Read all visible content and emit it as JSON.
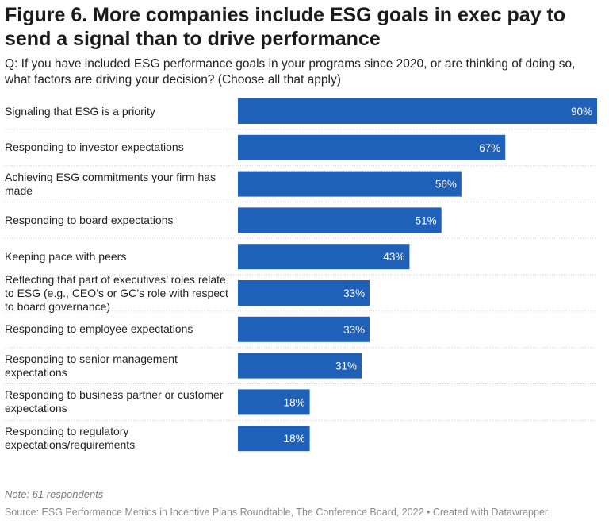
{
  "chart_data": {
    "type": "bar",
    "orientation": "horizontal",
    "title": "Figure 6. More companies include ESG goals in exec pay to send a signal than to drive performance",
    "subtitle": "Q: If you have included ESG performance goals in your programs since 2020, or are thinking of doing so, what factors are driving your decision? (Choose all that apply)",
    "categories": [
      "Signaling that ESG is a priority",
      "Responding to investor expectations",
      "Achieving ESG commitments your firm has made",
      "Responding to board expectations",
      "Keeping pace with peers",
      "Reflecting that part of executives’ roles relate to ESG (e.g., CEO’s or GC’s role with respect to board governance)",
      "Responding to employee expectations",
      "Responding to senior management expectations",
      "Responding to business partner or customer expectations",
      "Responding to regulatory expectations/requirements"
    ],
    "values": [
      90,
      67,
      56,
      51,
      43,
      33,
      33,
      31,
      18,
      18
    ],
    "value_labels": [
      "90%",
      "67%",
      "56%",
      "51%",
      "43%",
      "33%",
      "33%",
      "31%",
      "18%",
      "18%"
    ],
    "xlim": [
      0,
      90
    ],
    "bar_color": "#1f60b8",
    "note": "Note: 61 respondents",
    "source": "Source: ESG Performance Metrics in Incentive Plans Roundtable, The Conference Board, 2022 • Created with Datawrapper"
  }
}
